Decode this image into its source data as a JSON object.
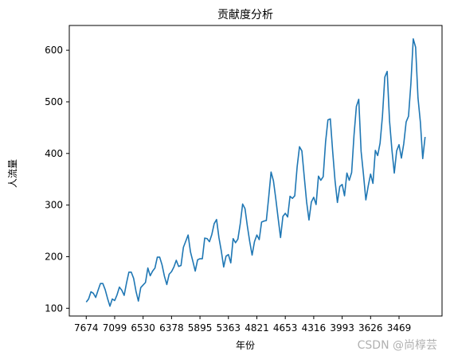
{
  "chart_data": {
    "type": "line",
    "title": "贡献度分析",
    "xlabel": "年份",
    "ylabel": "人流量",
    "xtick_labels": [
      "7674",
      "7099",
      "6530",
      "6378",
      "5895",
      "5363",
      "4821",
      "4653",
      "4316",
      "3993",
      "3626",
      "3469"
    ],
    "ylim": [
      85,
      648
    ],
    "yticks": [
      100,
      200,
      300,
      400,
      500,
      600
    ],
    "grid": false,
    "color": "#1f77b4",
    "series": [
      {
        "values": [
          112,
          118,
          132,
          129,
          121,
          135,
          148,
          148,
          136,
          119,
          104,
          118,
          115,
          126,
          141,
          135,
          125,
          149,
          170,
          170,
          158,
          133,
          114,
          140,
          145,
          150,
          178,
          163,
          172,
          178,
          199,
          199,
          184,
          162,
          146,
          166,
          171,
          180,
          193,
          181,
          183,
          218,
          230,
          242,
          209,
          191,
          172,
          194,
          196,
          196,
          236,
          235,
          229,
          243,
          264,
          272,
          237,
          211,
          180,
          201,
          204,
          188,
          235,
          227,
          234,
          264,
          302,
          293,
          259,
          229,
          203,
          229,
          242,
          233,
          267,
          269,
          270,
          315,
          364,
          347,
          312,
          274,
          237,
          278,
          284,
          277,
          317,
          313,
          318,
          374,
          413,
          405,
          355,
          306,
          271,
          306,
          315,
          301,
          356,
          348,
          355,
          422,
          465,
          467,
          404,
          347,
          305,
          336,
          340,
          318,
          362,
          348,
          363,
          435,
          491,
          505,
          404,
          359,
          310,
          337,
          360,
          342,
          406,
          396,
          420,
          472,
          548,
          559,
          463,
          407,
          362,
          405,
          417,
          391,
          419,
          461,
          472,
          535,
          622,
          606,
          508,
          461,
          390,
          432
        ]
      }
    ]
  },
  "watermark": "CSDN @尚椁芸"
}
